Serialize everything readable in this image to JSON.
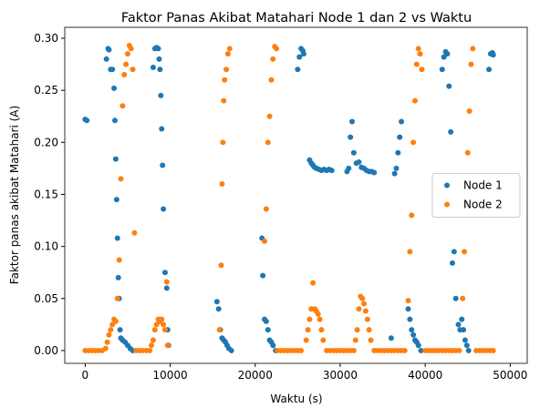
{
  "chart_data": {
    "type": "scatter",
    "title": "Faktor Panas Akibat Matahari Node 1 dan 2 vs Waktu",
    "x_label": "Waktu (s)",
    "y_label": "Faktor panas akibat Matahari (A)",
    "xlim": [
      -2400,
      52000
    ],
    "ylim": [
      -0.0123,
      0.3105
    ],
    "xticks": [
      0,
      10000,
      20000,
      30000,
      40000,
      50000
    ],
    "yticks": [
      {
        "value": 0,
        "label": "0.00"
      },
      {
        "value": 0.05,
        "label": "0.05"
      },
      {
        "value": 0.1,
        "label": "0.10"
      },
      {
        "value": 0.15,
        "label": "0.15"
      },
      {
        "value": 0.2,
        "label": "0.20"
      },
      {
        "value": 0.25,
        "label": "0.25"
      },
      {
        "value": 0.3,
        "label": "0.30"
      }
    ],
    "legend": "center right",
    "series": [
      {
        "name": "Node 1",
        "color": "#1f77b4",
        "x": [
          0,
          200,
          2500,
          2700,
          2800,
          3000,
          3200,
          3400,
          3500,
          3600,
          3700,
          3800,
          3900,
          4000,
          4100,
          4200,
          4400,
          4700,
          5000,
          5300,
          5600,
          8000,
          8200,
          8400,
          8600,
          8700,
          8800,
          8900,
          9000,
          9100,
          9200,
          9400,
          9600,
          9700,
          9800,
          15500,
          15700,
          15900,
          16100,
          16300,
          16500,
          16700,
          16900,
          17200,
          20800,
          20900,
          21100,
          21300,
          21500,
          21700,
          21900,
          22100,
          22400,
          25000,
          25200,
          25400,
          25600,
          25700,
          26400,
          26600,
          26800,
          27000,
          27200,
          27500,
          27800,
          28100,
          28400,
          28700,
          29000,
          30800,
          31000,
          31200,
          31400,
          31600,
          31900,
          32200,
          32500,
          32800,
          33100,
          33400,
          33700,
          34000,
          36000,
          36400,
          36600,
          36800,
          37000,
          37200,
          38000,
          38200,
          38400,
          38600,
          38800,
          39000,
          39200,
          39500,
          42000,
          42200,
          42400,
          42600,
          42800,
          43000,
          43200,
          43400,
          43600,
          43900,
          44100,
          44300,
          44500,
          44700,
          44900,
          45100,
          47500,
          47700,
          47900,
          48000
        ],
        "values": [
          0.222,
          0.221,
          0.28,
          0.29,
          0.289,
          0.27,
          0.27,
          0.252,
          0.221,
          0.184,
          0.145,
          0.108,
          0.07,
          0.05,
          0.02,
          0.012,
          0.01,
          0.008,
          0.005,
          0.002,
          0,
          0.272,
          0.29,
          0.291,
          0.29,
          0.28,
          0.27,
          0.245,
          0.213,
          0.178,
          0.136,
          0.075,
          0.06,
          0.02,
          0.005,
          0.047,
          0.04,
          0.02,
          0.012,
          0.01,
          0.008,
          0.005,
          0.002,
          0,
          0.108,
          0.072,
          0.03,
          0.028,
          0.02,
          0.01,
          0.008,
          0.005,
          0,
          0.27,
          0.282,
          0.29,
          0.288,
          0.285,
          0.183,
          0.18,
          0.178,
          0.176,
          0.175,
          0.174,
          0.173,
          0.174,
          0.173,
          0.174,
          0.173,
          0.172,
          0.175,
          0.205,
          0.22,
          0.19,
          0.18,
          0.181,
          0.176,
          0.175,
          0.173,
          0.172,
          0.172,
          0.171,
          0.012,
          0.17,
          0.175,
          0.19,
          0.205,
          0.22,
          0.04,
          0.03,
          0.02,
          0.015,
          0.01,
          0.008,
          0.005,
          0,
          0.27,
          0.282,
          0.287,
          0.285,
          0.254,
          0.21,
          0.084,
          0.095,
          0.05,
          0.025,
          0.02,
          0.03,
          0.02,
          0.01,
          0.005,
          0,
          0.27,
          0.285,
          0.286,
          0.284
        ]
      },
      {
        "name": "Node 2",
        "color": "#ff7f0e",
        "x": [
          0,
          400,
          800,
          1200,
          1600,
          2000,
          2400,
          2600,
          2800,
          3000,
          3200,
          3400,
          3600,
          3800,
          4000,
          4200,
          4400,
          4600,
          4800,
          5000,
          5200,
          5400,
          5600,
          5800,
          6000,
          6400,
          6800,
          7200,
          7600,
          7800,
          8000,
          8200,
          8400,
          8600,
          8800,
          9000,
          9200,
          9400,
          9600,
          9700,
          15800,
          16000,
          16100,
          16200,
          16300,
          16400,
          16600,
          16800,
          17000,
          21100,
          21300,
          21500,
          21700,
          21900,
          22100,
          22300,
          22500,
          22600,
          23000,
          23400,
          23800,
          24200,
          24600,
          25000,
          25400,
          26000,
          26200,
          26400,
          26600,
          26800,
          27000,
          27200,
          27400,
          27600,
          27800,
          28000,
          28400,
          28800,
          29200,
          29600,
          30000,
          30400,
          30800,
          31200,
          31600,
          31800,
          32000,
          32200,
          32400,
          32600,
          32800,
          33000,
          33200,
          33400,
          33600,
          34000,
          34400,
          34800,
          35200,
          35600,
          36000,
          36400,
          36800,
          37200,
          37600,
          38000,
          38200,
          38400,
          38600,
          38800,
          39000,
          39200,
          39400,
          39600,
          40000,
          40400,
          40800,
          41200,
          41600,
          42000,
          42400,
          42800,
          43200,
          43600,
          44000,
          44400,
          44600,
          44800,
          45000,
          45200,
          45400,
          45600,
          46000,
          46400,
          46800,
          47200,
          47600,
          48000
        ],
        "values": [
          0,
          0,
          0,
          0,
          0,
          0,
          0.002,
          0.008,
          0.015,
          0.02,
          0.025,
          0.03,
          0.028,
          0.05,
          0.087,
          0.165,
          0.235,
          0.265,
          0.275,
          0.285,
          0.293,
          0.29,
          0.27,
          0.113,
          0,
          0,
          0,
          0,
          0,
          0.005,
          0.01,
          0.02,
          0.025,
          0.03,
          0.028,
          0.03,
          0.025,
          0.02,
          0.066,
          0.005,
          0.02,
          0.082,
          0.16,
          0.2,
          0.24,
          0.26,
          0.27,
          0.285,
          0.29,
          0.105,
          0.136,
          0.2,
          0.225,
          0.26,
          0.28,
          0.292,
          0.29,
          0,
          0,
          0,
          0,
          0,
          0,
          0,
          0,
          0.01,
          0.02,
          0.03,
          0.04,
          0.065,
          0.04,
          0.038,
          0.035,
          0.03,
          0.02,
          0.01,
          0,
          0,
          0,
          0,
          0,
          0,
          0,
          0,
          0,
          0.01,
          0.02,
          0.04,
          0.052,
          0.05,
          0.045,
          0.038,
          0.03,
          0.02,
          0.01,
          0,
          0,
          0,
          0,
          0,
          0,
          0,
          0,
          0,
          0,
          0.048,
          0.095,
          0.13,
          0.2,
          0.24,
          0.275,
          0.29,
          0.285,
          0.27,
          0,
          0,
          0,
          0,
          0,
          0,
          0,
          0,
          0,
          0,
          0,
          0.05,
          0.095,
          0.14,
          0.19,
          0.23,
          0.275,
          0.29,
          0,
          0,
          0,
          0,
          0,
          0
        ]
      }
    ]
  }
}
